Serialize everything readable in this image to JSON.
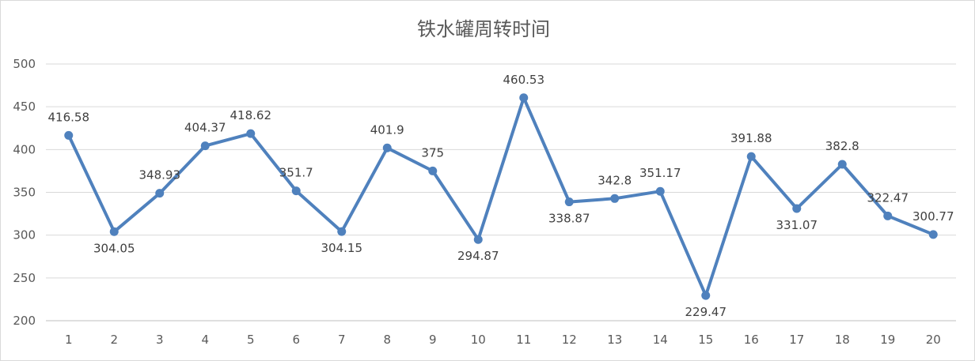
{
  "chart_data": {
    "type": "line",
    "title": "铁水罐周转时间",
    "xlabel": "",
    "ylabel": "",
    "categories": [
      "1",
      "2",
      "3",
      "4",
      "5",
      "6",
      "7",
      "8",
      "9",
      "10",
      "11",
      "12",
      "13",
      "14",
      "15",
      "16",
      "17",
      "18",
      "19",
      "20"
    ],
    "series": [
      {
        "values": [
          416.58,
          304.05,
          348.93,
          404.37,
          418.62,
          351.7,
          304.15,
          401.9,
          375,
          294.87,
          460.53,
          338.87,
          342.8,
          351.17,
          229.47,
          391.88,
          331.07,
          382.8,
          322.47,
          300.77
        ],
        "labels": [
          "416.58",
          "304.05",
          "348.93",
          "404.37",
          "418.62",
          "351.7",
          "304.15",
          "401.9",
          "375",
          "294.87",
          "460.53",
          "338.87",
          "342.8",
          "351.17",
          "229.47",
          "391.88",
          "331.07",
          "382.8",
          "322.47",
          "300.77"
        ],
        "color": "#4f81bd"
      }
    ],
    "ylim": [
      200,
      500
    ],
    "yticks": [
      "200",
      "250",
      "300",
      "350",
      "400",
      "450",
      "500"
    ],
    "grid": true,
    "legend": "none",
    "label_position": [
      "above",
      "below",
      "above",
      "above",
      "above",
      "above",
      "below",
      "above",
      "above",
      "below",
      "above",
      "below",
      "above",
      "above",
      "below",
      "above",
      "below",
      "above",
      "above",
      "above"
    ]
  }
}
